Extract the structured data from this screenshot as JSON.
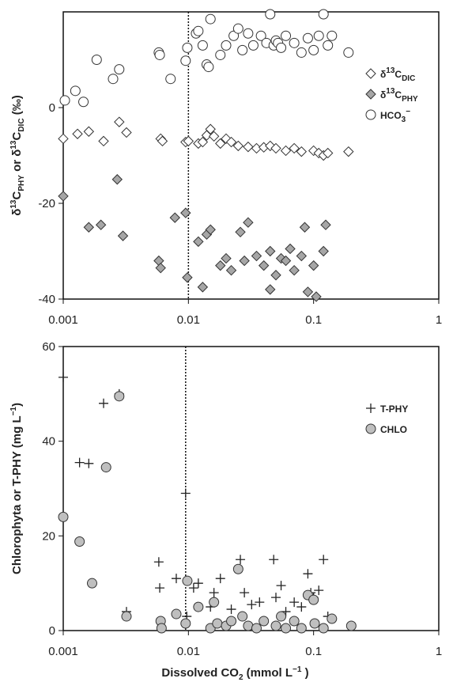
{
  "chart_data": [
    {
      "type": "scatter",
      "ylabel": "δ13CPHY or δ13CDIC (‰)",
      "xlim": [
        0.001,
        1
      ],
      "xticks": [
        0.001,
        0.01,
        0.1,
        1
      ],
      "xscale": "log",
      "ylim": [
        -40,
        20
      ],
      "yticks": [
        -40,
        -20,
        0
      ],
      "vline": 0.01,
      "legend": "upper right",
      "series": [
        {
          "name": "δ13CDIC",
          "marker": "diamond",
          "color": "#ffffff",
          "x": [
            0.001,
            0.0013,
            0.0016,
            0.0021,
            0.0028,
            0.0032,
            0.006,
            0.0062,
            0.0095,
            0.01,
            0.012,
            0.013,
            0.014,
            0.015,
            0.016,
            0.018,
            0.02,
            0.022,
            0.025,
            0.03,
            0.035,
            0.04,
            0.045,
            0.05,
            0.06,
            0.07,
            0.08,
            0.1,
            0.11,
            0.12,
            0.13,
            0.19
          ],
          "values": [
            -6.5,
            -5.5,
            -5,
            -7,
            -3,
            -5.2,
            -6.5,
            -7,
            -7.2,
            -7,
            -7.5,
            -7.2,
            -5.8,
            -4.5,
            -6,
            -7.5,
            -6.5,
            -7.2,
            -8,
            -8.2,
            -8.5,
            -8.3,
            -8,
            -8.5,
            -9,
            -8.5,
            -9.2,
            -9,
            -9.5,
            -10,
            -9.5,
            -9.2
          ]
        },
        {
          "name": "δ13CPHY",
          "marker": "diamond",
          "color": "#a6a6a6",
          "x": [
            0.001,
            0.0016,
            0.002,
            0.0027,
            0.003,
            0.0058,
            0.006,
            0.0078,
            0.0095,
            0.0098,
            0.012,
            0.013,
            0.014,
            0.015,
            0.018,
            0.02,
            0.022,
            0.026,
            0.028,
            0.03,
            0.035,
            0.04,
            0.045,
            0.045,
            0.05,
            0.055,
            0.06,
            0.065,
            0.07,
            0.08,
            0.085,
            0.09,
            0.1,
            0.105,
            0.12,
            0.125
          ],
          "values": [
            -18.5,
            -25,
            -24.5,
            -15,
            -26.8,
            -32,
            -33.5,
            -23,
            -22,
            -35.5,
            -28,
            -37.5,
            -26.5,
            -25.5,
            -33,
            -31.5,
            -34,
            -26,
            -32,
            -24,
            -31,
            -33,
            -30,
            -38,
            -35,
            -31.5,
            -32,
            -29.5,
            -34,
            -31,
            -25,
            -38.5,
            -33,
            -39.5,
            -30,
            -24.5
          ]
        },
        {
          "name": "HCO3−",
          "marker": "circle",
          "color": "#ffffff",
          "x": [
            0.00103,
            0.00125,
            0.00145,
            0.00185,
            0.0025,
            0.0028,
            0.0058,
            0.0059,
            0.0072,
            0.0095,
            0.0098,
            0.0115,
            0.012,
            0.013,
            0.014,
            0.0145,
            0.015,
            0.018,
            0.02,
            0.023,
            0.025,
            0.027,
            0.03,
            0.033,
            0.038,
            0.042,
            0.045,
            0.048,
            0.05,
            0.052,
            0.055,
            0.06,
            0.07,
            0.08,
            0.09,
            0.1,
            0.11,
            0.12,
            0.13,
            0.14,
            0.19
          ],
          "values": [
            1.5,
            3.5,
            1.2,
            10,
            6,
            8,
            11.5,
            11,
            6,
            9.8,
            12.5,
            15.5,
            16,
            13,
            9,
            8.5,
            18.5,
            11,
            13,
            15,
            16.5,
            12,
            15.5,
            13,
            15,
            13.5,
            19.5,
            13,
            14,
            13.5,
            12.5,
            15,
            13.5,
            11.5,
            14.5,
            12,
            15,
            19.5,
            13,
            15,
            11.5
          ]
        }
      ]
    },
    {
      "type": "scatter",
      "xlabel": "Dissolved CO2 (mmol L−1 )",
      "ylabel": "Chlorophyta  or  T-PHY (mg L−1)",
      "xlim": [
        0.001,
        1
      ],
      "xticks": [
        0.001,
        0.01,
        0.1,
        1
      ],
      "xscale": "log",
      "ylim": [
        0,
        60
      ],
      "yticks": [
        0,
        20,
        40,
        60
      ],
      "vline": 0.0095,
      "legend": "upper right",
      "series": [
        {
          "name": "T-PHY",
          "marker": "plus",
          "color": "#222222",
          "x": [
            0.001,
            0.00135,
            0.0016,
            0.0021,
            0.0028,
            0.0032,
            0.0058,
            0.0059,
            0.008,
            0.0095,
            0.0097,
            0.011,
            0.012,
            0.015,
            0.016,
            0.018,
            0.022,
            0.026,
            0.028,
            0.032,
            0.037,
            0.048,
            0.05,
            0.055,
            0.06,
            0.07,
            0.08,
            0.09,
            0.095,
            0.1,
            0.11,
            0.12,
            0.13,
            0.2
          ],
          "values": [
            53.5,
            35.5,
            35.3,
            48,
            50,
            4,
            14.5,
            9,
            11,
            29,
            3,
            9,
            10,
            5,
            8,
            11,
            4.5,
            15,
            8,
            5.5,
            6,
            15,
            7,
            9.5,
            4,
            6,
            5,
            12,
            8,
            7,
            8.5,
            15,
            3,
            1
          ]
        },
        {
          "name": "CHLO",
          "marker": "circle",
          "color": "#bfbfbf",
          "x": [
            0.001,
            0.00135,
            0.0017,
            0.0022,
            0.0028,
            0.0032,
            0.006,
            0.0061,
            0.008,
            0.0098,
            0.0095,
            0.012,
            0.015,
            0.017,
            0.016,
            0.02,
            0.022,
            0.025,
            0.027,
            0.03,
            0.035,
            0.04,
            0.05,
            0.055,
            0.06,
            0.07,
            0.08,
            0.09,
            0.1,
            0.102,
            0.12,
            0.14,
            0.2
          ],
          "values": [
            24,
            18.8,
            10,
            34.5,
            49.5,
            3,
            2,
            0.5,
            3.5,
            10.5,
            1.5,
            5,
            0.5,
            1.5,
            6,
            1,
            2,
            13,
            3,
            1,
            0.5,
            2,
            1,
            3,
            0.5,
            2,
            0.5,
            7.5,
            6.5,
            1.5,
            0.5,
            2.5,
            1
          ]
        }
      ]
    }
  ]
}
